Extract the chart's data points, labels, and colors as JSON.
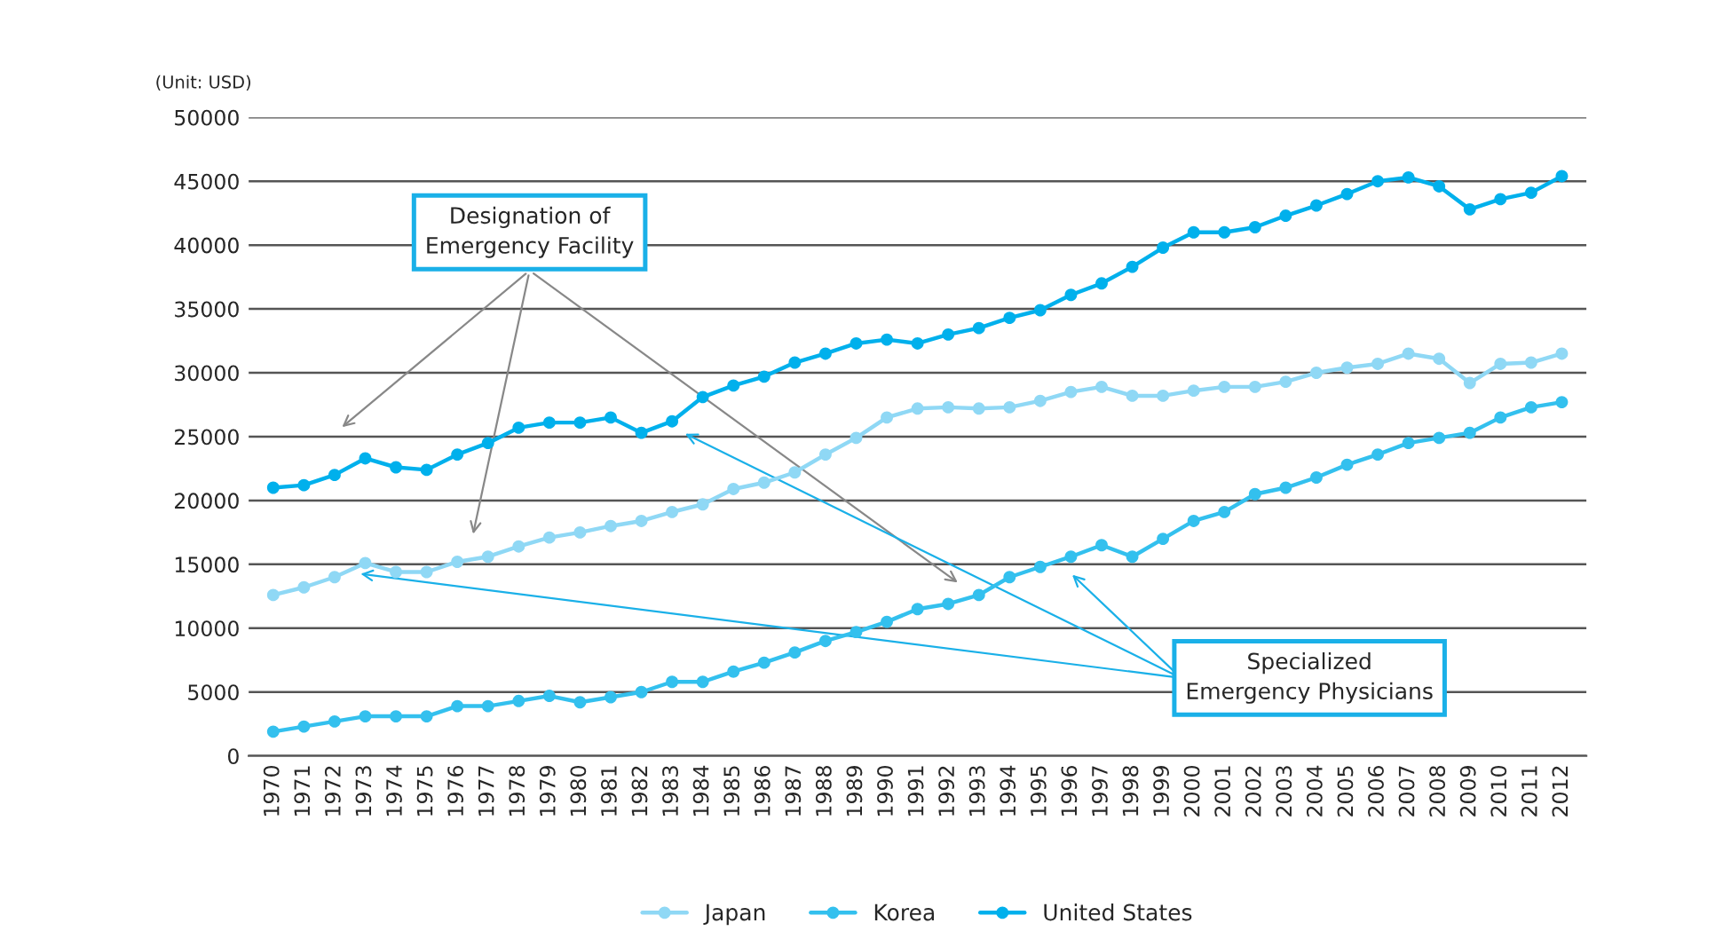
{
  "chart_data": {
    "type": "line",
    "ylabel": "(Unit: USD)",
    "categories": [
      "1970",
      "1971",
      "1972",
      "1973",
      "1974",
      "1975",
      "1976",
      "1977",
      "1978",
      "1979",
      "1980",
      "1981",
      "1982",
      "1983",
      "1984",
      "1985",
      "1986",
      "1987",
      "1988",
      "1989",
      "1990",
      "1991",
      "1992",
      "1993",
      "1994",
      "1995",
      "1996",
      "1997",
      "1998",
      "1999",
      "2000",
      "2001",
      "2002",
      "2003",
      "2004",
      "2005",
      "2006",
      "2007",
      "2008",
      "2009",
      "2010",
      "2011",
      "2012"
    ],
    "series": [
      {
        "name": "Japan",
        "color": "#8fd8f5",
        "values": [
          12600,
          13200,
          14000,
          15100,
          14400,
          14400,
          15200,
          15600,
          16400,
          17100,
          17500,
          18000,
          18400,
          19100,
          19700,
          20900,
          21400,
          22200,
          23600,
          24900,
          26500,
          27200,
          27300,
          27200,
          27300,
          27800,
          28500,
          28900,
          28200,
          28200,
          28600,
          28900,
          28900,
          29300,
          30000,
          30400,
          30700,
          31500,
          31100,
          29200,
          30700,
          30800,
          31500
        ]
      },
      {
        "name": "Korea",
        "color": "#33c0ee",
        "values": [
          1900,
          2300,
          2700,
          3100,
          3100,
          3100,
          3900,
          3900,
          4300,
          4700,
          4200,
          4600,
          5000,
          5800,
          5800,
          6600,
          7300,
          8100,
          9000,
          9700,
          10500,
          11500,
          11900,
          12600,
          14000,
          14800,
          15600,
          16500,
          15600,
          17000,
          18400,
          19100,
          20500,
          21000,
          21800,
          22800,
          23600,
          24500,
          24900,
          25300,
          26500,
          27300,
          27700
        ]
      },
      {
        "name": "United States",
        "color": "#00b0ec",
        "values": [
          21000,
          21200,
          22000,
          23300,
          22600,
          22400,
          23600,
          24500,
          25700,
          26100,
          26100,
          26500,
          25300,
          26200,
          28100,
          29000,
          29700,
          30800,
          31500,
          32300,
          32600,
          32300,
          33000,
          33500,
          34300,
          34900,
          36100,
          37000,
          38300,
          39800,
          41000,
          41000,
          41400,
          42300,
          43100,
          44000,
          45000,
          45300,
          44600,
          42800,
          43600,
          44100,
          45400
        ]
      }
    ],
    "ylim": [
      0,
      50000
    ],
    "yticks": [
      0,
      5000,
      10000,
      15000,
      20000,
      25000,
      30000,
      35000,
      40000,
      45000,
      50000
    ],
    "grid": "y",
    "legend": "bottom",
    "marker": "circle",
    "line_style": "solid",
    "annotations": [
      "Designation of\nEmergency Facility",
      "Specialized\nEmergency Physicians"
    ]
  }
}
